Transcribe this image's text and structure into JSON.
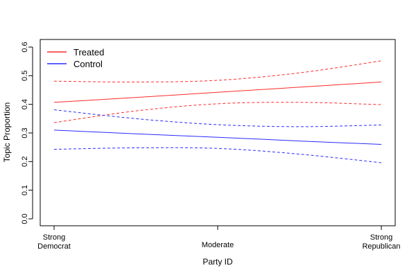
{
  "chart_data": {
    "type": "line",
    "title": "",
    "xlabel": "Party ID",
    "ylabel": "Topic Proportion",
    "x_categories": [
      [
        "Strong",
        "Democrat"
      ],
      [
        "Moderate"
      ],
      [
        "Strong",
        "Republican"
      ]
    ],
    "ylim": [
      0,
      0.6
    ],
    "yticks": [
      "0.0",
      "0.1",
      "0.2",
      "0.3",
      "0.4",
      "0.5",
      "0.6"
    ],
    "grid": false,
    "legend": {
      "position": "top-left",
      "entries": [
        "Treated",
        "Control"
      ]
    },
    "series": [
      {
        "name": "Treated",
        "color": "#ff2a2a",
        "x": [
          0,
          0.25,
          0.5,
          0.75,
          1
        ],
        "mean": [
          0.407,
          0.424,
          0.442,
          0.46,
          0.478
        ],
        "upper": [
          0.481,
          0.478,
          0.484,
          0.51,
          0.552
        ],
        "lower": [
          0.336,
          0.377,
          0.402,
          0.407,
          0.399
        ]
      },
      {
        "name": "Control",
        "color": "#2a2aff",
        "x": [
          0,
          0.25,
          0.5,
          0.75,
          1
        ],
        "mean": [
          0.31,
          0.297,
          0.285,
          0.272,
          0.26
        ],
        "upper": [
          0.381,
          0.35,
          0.329,
          0.322,
          0.328
        ],
        "lower": [
          0.243,
          0.248,
          0.246,
          0.226,
          0.196
        ]
      }
    ]
  }
}
